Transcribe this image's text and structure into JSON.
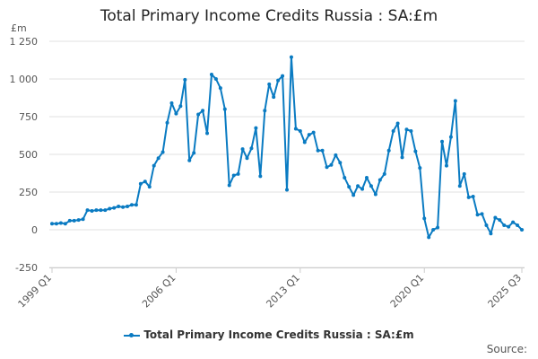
{
  "chart_data": {
    "type": "line",
    "title": "Total Primary Income Credits Russia : SA:£m",
    "ylabel": "£m",
    "ylim": [
      -250,
      1250
    ],
    "yticks": [
      -250,
      0,
      250,
      500,
      750,
      1000,
      1250
    ],
    "ytick_labels": [
      "-250",
      "0",
      "250",
      "500",
      "750",
      "1 000",
      "1 250"
    ],
    "xtick_labels": [
      "1999 Q1",
      "2006 Q1",
      "2013 Q1",
      "2020 Q1",
      "2025 Q3"
    ],
    "x_start": "1999 Q1",
    "x_end": "2025 Q3",
    "grid": true,
    "legend_position": "bottom",
    "series": [
      {
        "name": "Total Primary Income Credits Russia : SA:£m",
        "color": "#0a7bc2",
        "values": [
          40,
          40,
          45,
          40,
          60,
          60,
          65,
          70,
          130,
          125,
          130,
          130,
          130,
          140,
          145,
          155,
          150,
          155,
          165,
          165,
          305,
          320,
          285,
          425,
          475,
          515,
          710,
          840,
          770,
          820,
          995,
          460,
          510,
          765,
          790,
          640,
          1030,
          1000,
          940,
          800,
          295,
          360,
          370,
          535,
          475,
          540,
          675,
          355,
          790,
          965,
          880,
          990,
          1020,
          265,
          1145,
          670,
          655,
          580,
          630,
          645,
          525,
          525,
          415,
          430,
          495,
          445,
          345,
          285,
          230,
          290,
          270,
          345,
          290,
          235,
          330,
          370,
          525,
          655,
          705,
          480,
          665,
          655,
          520,
          410,
          75,
          -50,
          0,
          15,
          585,
          425,
          615,
          855,
          290,
          370,
          215,
          220,
          100,
          105,
          30,
          -25,
          80,
          65,
          30,
          20,
          50,
          30,
          0
        ]
      }
    ]
  },
  "source_label": "Source:"
}
